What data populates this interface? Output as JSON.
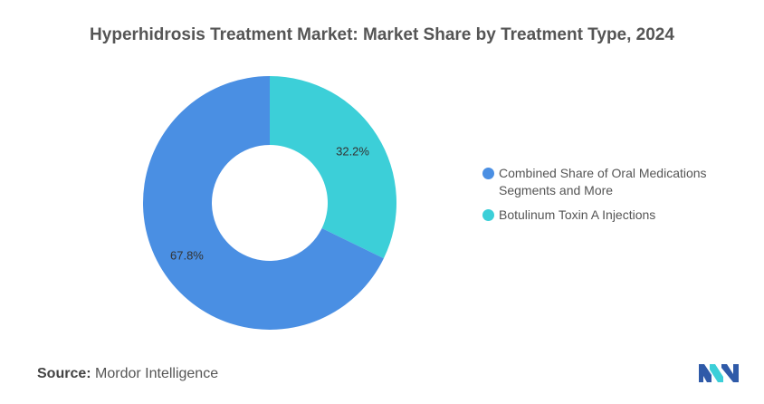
{
  "title": "Hyperhidrosis Treatment Market: Market Share by Treatment Type, 2024",
  "chart_data": {
    "type": "pie",
    "variant": "donut",
    "title": "Hyperhidrosis Treatment Market: Market Share by Treatment Type, 2024",
    "categories": [
      "Combined Share of Oral Medications Segments and More",
      "Botulinum Toxin A Injections"
    ],
    "values": [
      67.8,
      32.2
    ],
    "data_labels": [
      "67.8%",
      "32.2%"
    ],
    "colors": [
      "#4a8fe3",
      "#3ccfd8"
    ],
    "legend": "right"
  },
  "legend": {
    "items": [
      {
        "label": "Combined Share of Oral Medications Segments and More",
        "color": "#4a8fe3"
      },
      {
        "label": "Botulinum Toxin A Injections",
        "color": "#3ccfd8"
      }
    ]
  },
  "source": {
    "label": "Source:",
    "text": "Mordor Intelligence"
  },
  "logo": {
    "icon": "mordor-intelligence-logo-icon",
    "colors": [
      "#2f5aa8",
      "#3ccfd8"
    ]
  }
}
